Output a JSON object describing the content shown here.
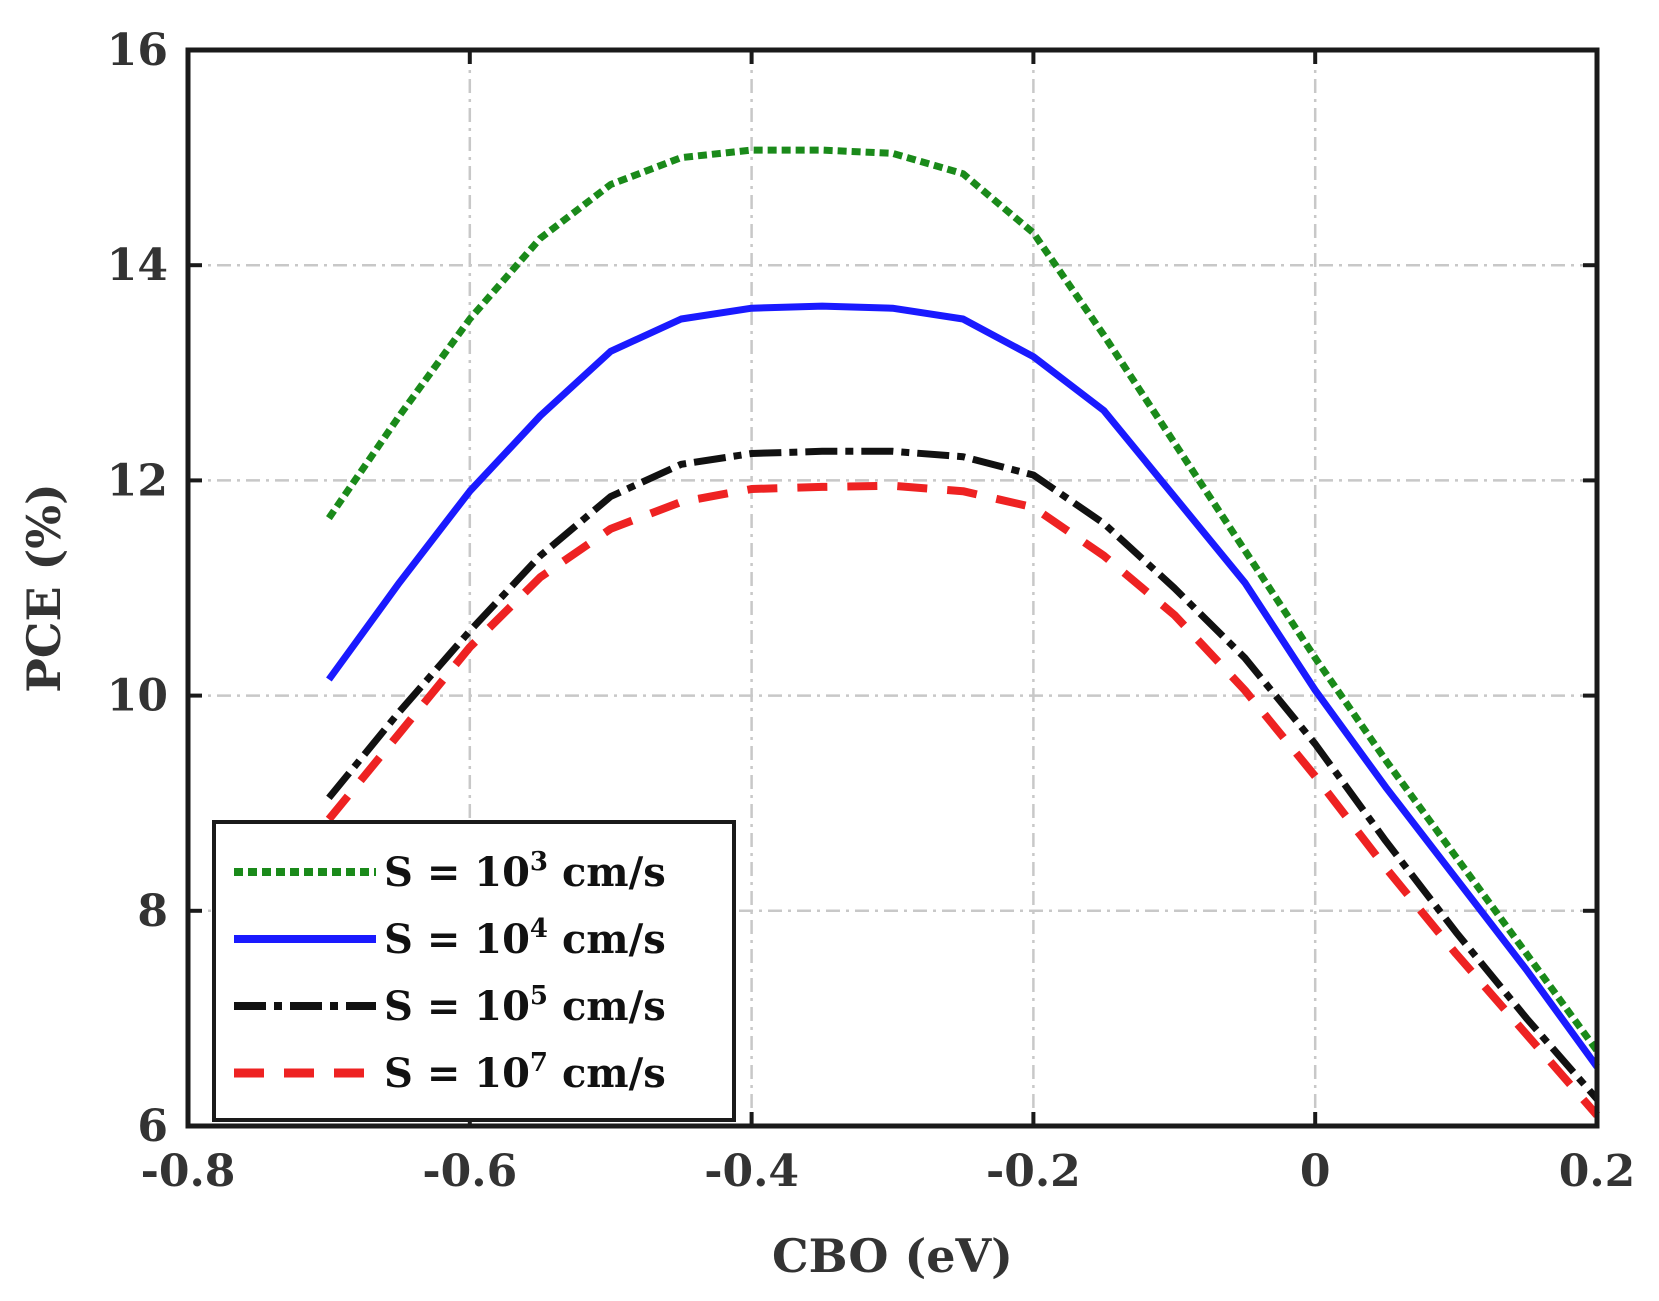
{
  "chart_data": {
    "type": "line",
    "title": "",
    "xlabel": "CBO (eV)",
    "ylabel": "PCE (%)",
    "xlim": [
      -0.8,
      0.2
    ],
    "ylim": [
      6,
      16
    ],
    "xticks": [
      -0.8,
      -0.6,
      -0.4,
      -0.2,
      0,
      0.2
    ],
    "xtick_labels": [
      "-0.8",
      "-0.6",
      "-0.4",
      "-0.2",
      "0",
      "0.2"
    ],
    "yticks": [
      6,
      8,
      10,
      12,
      14,
      16
    ],
    "ytick_labels": [
      "6",
      "8",
      "10",
      "12",
      "14",
      "16"
    ],
    "grid": true,
    "legend_position": "bottom-left",
    "x": [
      -0.7,
      -0.65,
      -0.6,
      -0.55,
      -0.5,
      -0.45,
      -0.4,
      -0.35,
      -0.3,
      -0.25,
      -0.2,
      -0.15,
      -0.1,
      -0.05,
      0,
      0.05,
      0.1,
      0.15,
      0.2
    ],
    "series": [
      {
        "name": "S = 10^3 cm/s",
        "label_main": "S = 10",
        "label_exp": "3",
        "label_unit": " cm/s",
        "color": "#1a8a1a",
        "style": "dotted",
        "values": [
          11.65,
          12.6,
          13.5,
          14.25,
          14.75,
          15.0,
          15.07,
          15.07,
          15.04,
          14.85,
          14.3,
          13.35,
          12.35,
          11.35,
          10.35,
          9.4,
          8.5,
          7.6,
          6.7
        ]
      },
      {
        "name": "S = 10^4 cm/s",
        "label_main": "S = 10",
        "label_exp": "4",
        "label_unit": " cm/s",
        "color": "#1a1aff",
        "style": "solid",
        "values": [
          10.15,
          11.05,
          11.9,
          12.6,
          13.2,
          13.5,
          13.6,
          13.62,
          13.6,
          13.5,
          13.15,
          12.65,
          11.85,
          11.05,
          10.05,
          9.15,
          8.3,
          7.45,
          6.55
        ]
      },
      {
        "name": "S = 10^5 cm/s",
        "label_main": "S = 10",
        "label_exp": "5",
        "label_unit": " cm/s",
        "color": "#111111",
        "style": "dashdot",
        "values": [
          9.05,
          9.85,
          10.6,
          11.3,
          11.85,
          12.15,
          12.25,
          12.27,
          12.27,
          12.22,
          12.05,
          11.6,
          11.0,
          10.35,
          9.55,
          8.65,
          7.8,
          7.0,
          6.25
        ]
      },
      {
        "name": "S = 10^7 cm/s",
        "label_main": "S = 10",
        "label_exp": "7",
        "label_unit": " cm/s",
        "color": "#ee2222",
        "style": "dashed",
        "values": [
          8.85,
          9.65,
          10.45,
          11.1,
          11.55,
          11.8,
          11.92,
          11.94,
          11.95,
          11.9,
          11.75,
          11.3,
          10.75,
          10.05,
          9.25,
          8.4,
          7.6,
          6.85,
          6.1
        ]
      }
    ]
  }
}
